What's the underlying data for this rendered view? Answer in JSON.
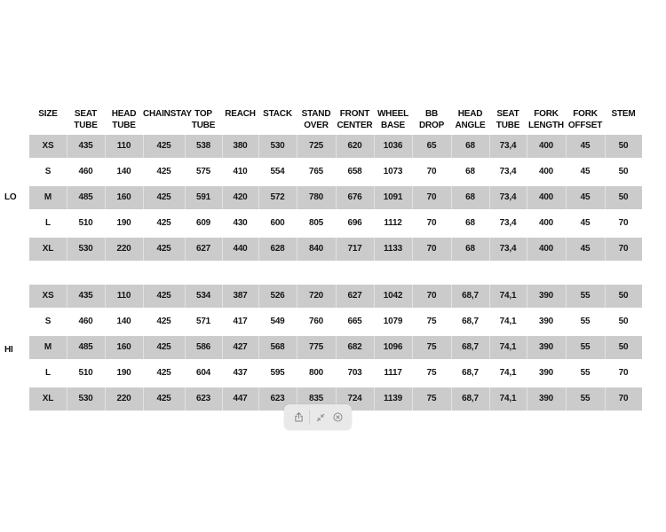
{
  "page": {
    "background": "#ffffff"
  },
  "table": {
    "colors": {
      "shaded_row": "#cbcbcb",
      "text": "#161616"
    },
    "columns": [
      "SIZE",
      "SEAT\nTUBE",
      "HEAD\nTUBE",
      "CHAINSTAY",
      "TOP\nTUBE",
      "REACH",
      "STACK",
      "STAND\nOVER",
      "FRONT\nCENTER",
      "WHEEL\nBASE",
      "BB DROP",
      "HEAD\nANGLE",
      "SEAT\nTUBE",
      "FORK\nLENGTH",
      "FORK\nOFFSET",
      "STEM"
    ],
    "groups": [
      {
        "label": "LO",
        "rows": [
          {
            "cells": [
              "XS",
              "435",
              "110",
              "425",
              "538",
              "380",
              "530",
              "725",
              "620",
              "1036",
              "65",
              "68",
              "73,4",
              "400",
              "45",
              "50"
            ]
          },
          {
            "cells": [
              "S",
              "460",
              "140",
              "425",
              "575",
              "410",
              "554",
              "765",
              "658",
              "1073",
              "70",
              "68",
              "73,4",
              "400",
              "45",
              "50"
            ]
          },
          {
            "cells": [
              "M",
              "485",
              "160",
              "425",
              "591",
              "420",
              "572",
              "780",
              "676",
              "1091",
              "70",
              "68",
              "73,4",
              "400",
              "45",
              "50"
            ]
          },
          {
            "cells": [
              "L",
              "510",
              "190",
              "425",
              "609",
              "430",
              "600",
              "805",
              "696",
              "1112",
              "70",
              "68",
              "73,4",
              "400",
              "45",
              "70"
            ]
          },
          {
            "cells": [
              "XL",
              "530",
              "220",
              "425",
              "627",
              "440",
              "628",
              "840",
              "717",
              "1133",
              "70",
              "68",
              "73,4",
              "400",
              "45",
              "70"
            ]
          }
        ]
      },
      {
        "label": "HI",
        "rows": [
          {
            "cells": [
              "XS",
              "435",
              "110",
              "425",
              "534",
              "387",
              "526",
              "720",
              "627",
              "1042",
              "70",
              "68,7",
              "74,1",
              "390",
              "55",
              "50"
            ]
          },
          {
            "cells": [
              "S",
              "460",
              "140",
              "425",
              "571",
              "417",
              "549",
              "760",
              "665",
              "1079",
              "75",
              "68,7",
              "74,1",
              "390",
              "55",
              "50"
            ]
          },
          {
            "cells": [
              "M",
              "485",
              "160",
              "425",
              "586",
              "427",
              "568",
              "775",
              "682",
              "1096",
              "75",
              "68,7",
              "74,1",
              "390",
              "55",
              "50"
            ]
          },
          {
            "cells": [
              "L",
              "510",
              "190",
              "425",
              "604",
              "437",
              "595",
              "800",
              "703",
              "1117",
              "75",
              "68,7",
              "74,1",
              "390",
              "55",
              "70"
            ]
          },
          {
            "cells": [
              "XL",
              "530",
              "220",
              "425",
              "623",
              "447",
              "623",
              "835",
              "724",
              "1139",
              "75",
              "68,7",
              "74,1",
              "390",
              "55",
              "70"
            ]
          }
        ]
      }
    ]
  },
  "toolbar": {
    "icons": [
      "share-icon",
      "shrink-icon",
      "close-icon"
    ]
  }
}
